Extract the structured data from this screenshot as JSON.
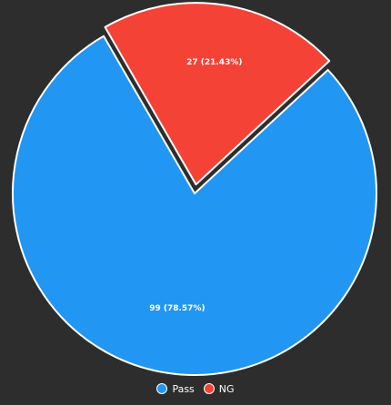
{
  "chart_data": {
    "type": "pie",
    "title": "",
    "slices": [
      {
        "name": "Pass",
        "value": 99,
        "label": "99 (78.57%)",
        "color": "#2196f3"
      },
      {
        "name": "NG",
        "value": 27,
        "label": "27 (21.43%)",
        "color": "#f44336"
      }
    ],
    "exploded": [
      "NG"
    ],
    "legend_placement": "bottom-center",
    "border_color": "#ffffff",
    "background_color": "#2d2d2d"
  }
}
